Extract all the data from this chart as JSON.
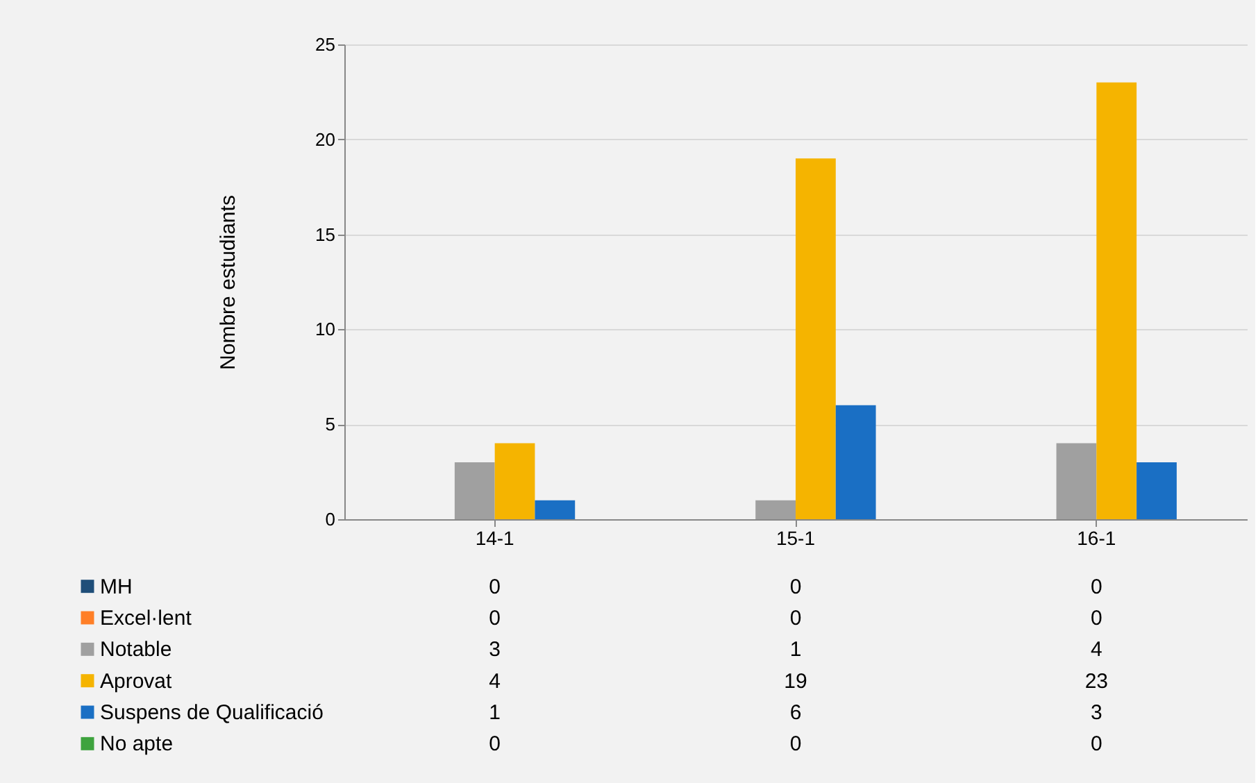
{
  "chart_data": {
    "type": "bar",
    "ylabel": "Nombre estudiants",
    "categories": [
      "14-1",
      "15-1",
      "16-1"
    ],
    "series": [
      {
        "name": "MH",
        "color": "#1f4e79",
        "values": [
          0,
          0,
          0
        ]
      },
      {
        "name": "Excel·lent",
        "color": "#ff7f27",
        "values": [
          0,
          0,
          0
        ]
      },
      {
        "name": "Notable",
        "color": "#a0a0a0",
        "values": [
          3,
          1,
          4
        ]
      },
      {
        "name": "Aprovat",
        "color": "#f5b400",
        "values": [
          4,
          19,
          23
        ]
      },
      {
        "name": "Suspens de Qualificació",
        "color": "#1a6fc4",
        "values": [
          1,
          6,
          3
        ]
      },
      {
        "name": "No apte",
        "color": "#3ea33e",
        "values": [
          0,
          0,
          0
        ]
      }
    ],
    "ylim": [
      0,
      25
    ],
    "yticks": [
      0,
      5,
      10,
      15,
      20,
      25
    ],
    "grid": "y",
    "legend": "bottom",
    "data_labels": true
  }
}
